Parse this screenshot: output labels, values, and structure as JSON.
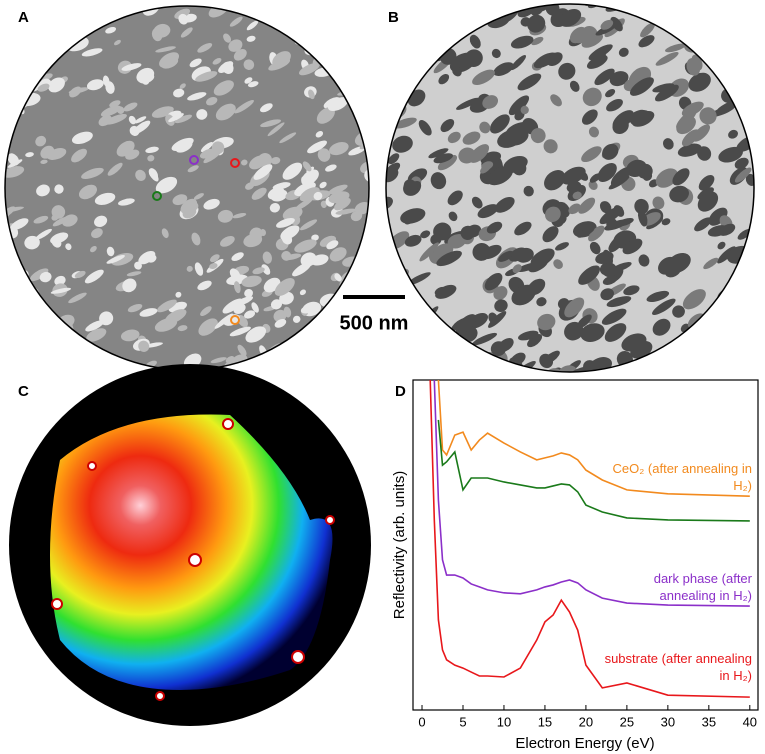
{
  "panel_labels": [
    "A",
    "B",
    "C",
    "D"
  ],
  "scale_bar": "500 nm",
  "chart_data": {
    "type": "line",
    "xlabel": "Electron Energy (eV)",
    "ylabel": "Reflectivity (arb. units)",
    "x": [
      1,
      1.5,
      2,
      2.5,
      3,
      4,
      5,
      6,
      7,
      8,
      10,
      12,
      14,
      15,
      16,
      17,
      18,
      19,
      20,
      22,
      25,
      30,
      40
    ],
    "xlim": [
      -1.1,
      41
    ],
    "xticks": [
      0,
      5,
      10,
      15,
      20,
      25,
      30,
      35,
      40
    ],
    "ylim": [
      0,
      100
    ],
    "series": [
      {
        "name": "CeO₂ (after annealing in H₂)",
        "color": "#f28a1e",
        "values": [
          null,
          null,
          100,
          78.8,
          77.3,
          83.3,
          84.2,
          78.8,
          81.8,
          83.9,
          80.9,
          78.2,
          75.8,
          76.4,
          77.0,
          77.9,
          77.3,
          75.8,
          72.7,
          69.7,
          66.7,
          65.5,
          64.8
        ]
      },
      {
        "name": null,
        "color": "#1a7a1a",
        "values": [
          null,
          null,
          87.9,
          74.2,
          75.2,
          78.2,
          66.7,
          70.3,
          70.3,
          70.3,
          69.1,
          68.2,
          67.3,
          67.3,
          67.9,
          68.5,
          68.2,
          66.1,
          62.1,
          60.0,
          58.2,
          57.6,
          57.3
        ]
      },
      {
        "name": "dark phase (after annealing in H₂)",
        "color": "#8b2fc9",
        "values": [
          null,
          100,
          63.6,
          45.5,
          40.9,
          40.9,
          40.0,
          38.2,
          37.3,
          36.4,
          35.5,
          35.2,
          36.4,
          37.3,
          37.9,
          38.8,
          39.4,
          38.5,
          36.4,
          33.9,
          32.4,
          31.8,
          31.5
        ]
      },
      {
        "name": "substrate (after annealing in H₂)",
        "color": "#e8171b",
        "values": [
          100,
          57.6,
          27.3,
          18.2,
          15.2,
          13.6,
          12.7,
          11.5,
          10.3,
          10.3,
          10.0,
          12.7,
          21.2,
          26.7,
          28.8,
          33.3,
          29.7,
          24.2,
          13.6,
          6.7,
          8.2,
          4.5,
          3.9
        ]
      }
    ]
  }
}
